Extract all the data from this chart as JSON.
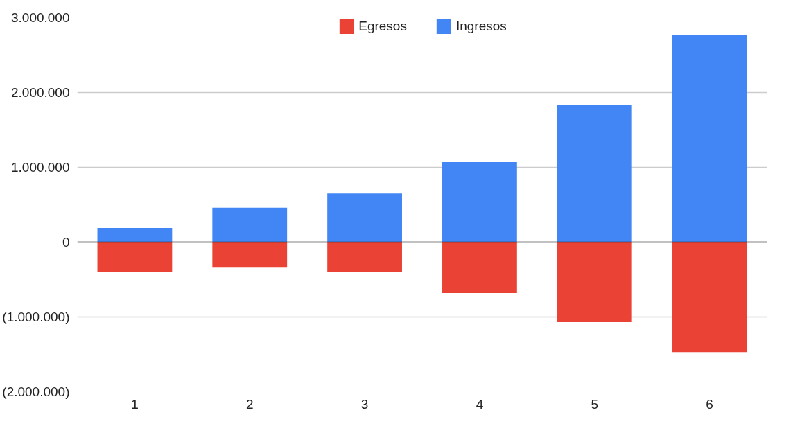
{
  "chart_data": {
    "type": "bar",
    "stacked": true,
    "categories": [
      "1",
      "2",
      "3",
      "4",
      "5",
      "6"
    ],
    "series": [
      {
        "name": "Egresos",
        "color": "#ea4335",
        "values": [
          -400000,
          -340000,
          -400000,
          -680000,
          -1070000,
          -1470000
        ]
      },
      {
        "name": "Ingresos",
        "color": "#4285f4",
        "values": [
          190000,
          460000,
          650000,
          1070000,
          1830000,
          2770000
        ]
      }
    ],
    "ylim": [
      -2000000,
      3000000
    ],
    "yticks": [
      {
        "value": -2000000,
        "label": "(2.000.000)"
      },
      {
        "value": -1000000,
        "label": "(1.000.000)"
      },
      0,
      {
        "value": 1000000,
        "label": "1.000.000"
      },
      {
        "value": 2000000,
        "label": "2.000.000"
      },
      {
        "value": 3000000,
        "label": "3.000.000"
      }
    ],
    "ref_lines": [
      {
        "axis": "y",
        "value": 0,
        "color": "#333333"
      }
    ],
    "grid": "y",
    "legend": "top"
  }
}
